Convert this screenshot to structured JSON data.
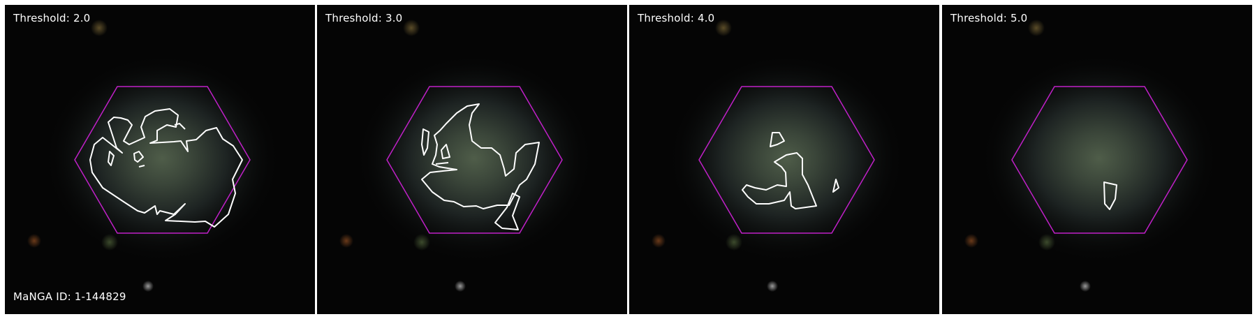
{
  "panels": [
    {
      "threshold_label": "Threshold: 2.0"
    },
    {
      "threshold_label": "Threshold: 3.0"
    },
    {
      "threshold_label": "Threshold: 4.0"
    },
    {
      "threshold_label": "Threshold: 5.0"
    }
  ],
  "galaxy_id_label": "MaNGA ID: 1-144829",
  "colors": {
    "ifu_hexagon": "#c020c8",
    "contour": "#ffffff",
    "background": "#050505"
  }
}
